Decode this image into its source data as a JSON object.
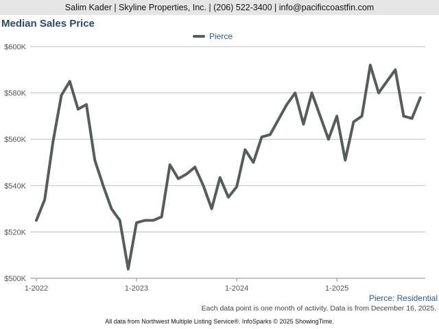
{
  "header": {
    "contact": "Salim Kader | Skyline Properties, Inc. | (206) 522-3400 | info@pacificcoastfin.com"
  },
  "footer": {
    "region": "Pierce: Residential",
    "note": "Each data point is one month of activity. Data is from December 16, 2025.",
    "source": "All data from Northwest Multiple Listing Service®. InfoSparks © 2025 ShowingTime."
  },
  "colors": {
    "series": "#555c59",
    "grid": "#bdbdbd",
    "axis_text": "#555555",
    "title": "#2e4a6b",
    "legend_text": "#2e5a86"
  },
  "chart_data": {
    "type": "line",
    "title": "Median Sales Price",
    "xlabel": "",
    "ylabel": "",
    "ylim": [
      500000,
      600000
    ],
    "yticks": [
      500000,
      520000,
      540000,
      560000,
      580000,
      600000
    ],
    "ytick_labels": [
      "$500K",
      "$520K",
      "$540K",
      "$560K",
      "$580K",
      "$600K"
    ],
    "xticks": [
      "1-2022",
      "1-2023",
      "1-2024",
      "1-2025"
    ],
    "xtick_month_index": [
      0,
      12,
      24,
      36
    ],
    "legend_position": "top-center",
    "x": [
      "2022-01",
      "2022-02",
      "2022-03",
      "2022-04",
      "2022-05",
      "2022-06",
      "2022-07",
      "2022-08",
      "2022-09",
      "2022-10",
      "2022-11",
      "2022-12",
      "2023-01",
      "2023-02",
      "2023-03",
      "2023-04",
      "2023-05",
      "2023-06",
      "2023-07",
      "2023-08",
      "2023-09",
      "2023-10",
      "2023-11",
      "2023-12",
      "2024-01",
      "2024-02",
      "2024-03",
      "2024-04",
      "2024-05",
      "2024-06",
      "2024-07",
      "2024-08",
      "2024-09",
      "2024-10",
      "2024-11",
      "2024-12",
      "2025-01",
      "2025-02",
      "2025-03",
      "2025-04",
      "2025-05",
      "2025-06",
      "2025-07",
      "2025-08",
      "2025-09",
      "2025-10",
      "2025-11"
    ],
    "series": [
      {
        "name": "Pierce",
        "values": [
          525000,
          534000,
          559000,
          579000,
          585000,
          573000,
          575000,
          551000,
          540000,
          530000,
          525000,
          504000,
          524000,
          525000,
          525000,
          526500,
          549000,
          543000,
          545000,
          548000,
          540000,
          530000,
          543500,
          535000,
          539500,
          555500,
          550000,
          561000,
          562000,
          568500,
          575000,
          580000,
          566500,
          580000,
          570000,
          560000,
          570000,
          551000,
          567500,
          570000,
          592000,
          580000,
          585000,
          590000,
          570000,
          569000,
          578000
        ]
      }
    ]
  }
}
